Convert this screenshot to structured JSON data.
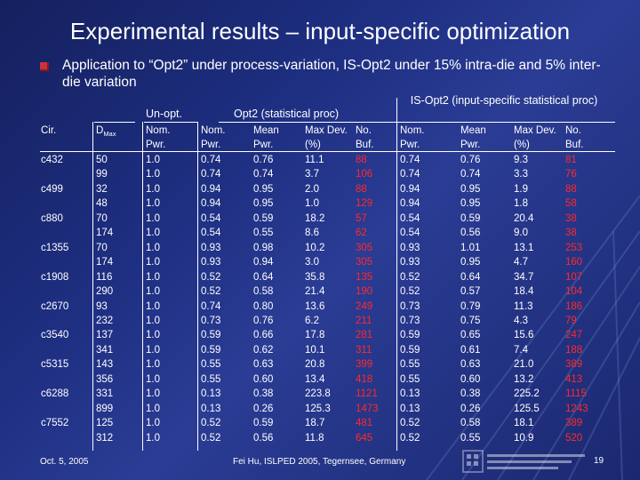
{
  "title": "Experimental results – input-specific optimization",
  "bullet": "Application to “Opt2” under process-variation, IS-Opt2 under 15% intra-die and 5% inter-die variation",
  "table": {
    "group_unopt": "Un-opt.",
    "group_opt2": "Opt2 (statistical proc)",
    "group_isopt2": "IS-Opt2 (input-specific statistical proc)",
    "col_cir": "Cir.",
    "col_dmax": "D",
    "col_dmax_sub": "Max",
    "col_headers": [
      [
        "Nom.",
        "Pwr."
      ],
      [
        "Nom.",
        "Pwr."
      ],
      [
        "Mean",
        "Pwr."
      ],
      [
        "Max Dev.",
        "(%)"
      ],
      [
        "No.",
        "Buf."
      ],
      [
        "Nom.",
        "Pwr."
      ],
      [
        "Mean",
        "Pwr."
      ],
      [
        "Max Dev.",
        "(%)"
      ],
      [
        "No.",
        "Buf."
      ]
    ],
    "rows": [
      {
        "cir": "c432",
        "dmax": "50",
        "v": [
          "1.0",
          "0.74",
          "0.76",
          "11.1",
          "88",
          "0.74",
          "0.76",
          "9.3",
          "81"
        ]
      },
      {
        "cir": "",
        "dmax": "99",
        "v": [
          "1.0",
          "0.74",
          "0.74",
          "3.7",
          "106",
          "0.74",
          "0.74",
          "3.3",
          "76"
        ]
      },
      {
        "cir": "c499",
        "dmax": "32",
        "v": [
          "1.0",
          "0.94",
          "0.95",
          "2.0",
          "88",
          "0.94",
          "0.95",
          "1.9",
          "88"
        ]
      },
      {
        "cir": "",
        "dmax": "48",
        "v": [
          "1.0",
          "0.94",
          "0.95",
          "1.0",
          "129",
          "0.94",
          "0.95",
          "1.8",
          "58"
        ]
      },
      {
        "cir": "c880",
        "dmax": "70",
        "v": [
          "1.0",
          "0.54",
          "0.59",
          "18.2",
          "57",
          "0.54",
          "0.59",
          "20.4",
          "38"
        ]
      },
      {
        "cir": "",
        "dmax": "174",
        "v": [
          "1.0",
          "0.54",
          "0.55",
          "8.6",
          "62",
          "0.54",
          "0.56",
          "9.0",
          "38"
        ]
      },
      {
        "cir": "c1355",
        "dmax": "70",
        "v": [
          "1.0",
          "0.93",
          "0.98",
          "10.2",
          "305",
          "0.93",
          "1.01",
          "13.1",
          "253"
        ]
      },
      {
        "cir": "",
        "dmax": "174",
        "v": [
          "1.0",
          "0.93",
          "0.94",
          "3.0",
          "305",
          "0.93",
          "0.95",
          "4.7",
          "160"
        ]
      },
      {
        "cir": "c1908",
        "dmax": "116",
        "v": [
          "1.0",
          "0.52",
          "0.64",
          "35.8",
          "135",
          "0.52",
          "0.64",
          "34.7",
          "107"
        ]
      },
      {
        "cir": "",
        "dmax": "290",
        "v": [
          "1.0",
          "0.52",
          "0.58",
          "21.4",
          "190",
          "0.52",
          "0.57",
          "18.4",
          "104"
        ]
      },
      {
        "cir": "c2670",
        "dmax": "93",
        "v": [
          "1.0",
          "0.74",
          "0.80",
          "13.6",
          "249",
          "0.73",
          "0.79",
          "11.3",
          "186"
        ]
      },
      {
        "cir": "",
        "dmax": "232",
        "v": [
          "1.0",
          "0.73",
          "0.76",
          "6.2",
          "211",
          "0.73",
          "0.75",
          "4.3",
          "79"
        ]
      },
      {
        "cir": "c3540",
        "dmax": "137",
        "v": [
          "1.0",
          "0.59",
          "0.66",
          "17.8",
          "281",
          "0.59",
          "0.65",
          "15.6",
          "247"
        ]
      },
      {
        "cir": "",
        "dmax": "341",
        "v": [
          "1.0",
          "0.59",
          "0.62",
          "10.1",
          "311",
          "0.59",
          "0.61",
          "7.4",
          "188"
        ]
      },
      {
        "cir": "c5315",
        "dmax": "143",
        "v": [
          "1.0",
          "0.55",
          "0.63",
          "20.8",
          "399",
          "0.55",
          "0.63",
          "21.0",
          "389"
        ]
      },
      {
        "cir": "",
        "dmax": "356",
        "v": [
          "1.0",
          "0.55",
          "0.60",
          "13.4",
          "418",
          "0.55",
          "0.60",
          "13.2",
          "413"
        ]
      },
      {
        "cir": "c6288",
        "dmax": "331",
        "v": [
          "1.0",
          "0.13",
          "0.38",
          "223.8",
          "1121",
          "0.13",
          "0.38",
          "225.2",
          "1115"
        ]
      },
      {
        "cir": "",
        "dmax": "899",
        "v": [
          "1.0",
          "0.13",
          "0.26",
          "125.3",
          "1473",
          "0.13",
          "0.26",
          "125.5",
          "1243"
        ]
      },
      {
        "cir": "c7552",
        "dmax": "125",
        "v": [
          "1.0",
          "0.52",
          "0.59",
          "18.7",
          "481",
          "0.52",
          "0.58",
          "18.1",
          "389"
        ]
      },
      {
        "cir": "",
        "dmax": "312",
        "v": [
          "1.0",
          "0.52",
          "0.56",
          "11.8",
          "645",
          "0.52",
          "0.55",
          "10.9",
          "520"
        ]
      }
    ]
  },
  "colors": {
    "background": "#1e2f82",
    "text": "#ffffff",
    "highlight": "#ff2a2a",
    "bullet": "#d0303a"
  },
  "footer": {
    "date": "Oct. 5, 2005",
    "center": "Fei Hu, ISLPED 2005, Tegernsee, Germany",
    "page": "19"
  }
}
